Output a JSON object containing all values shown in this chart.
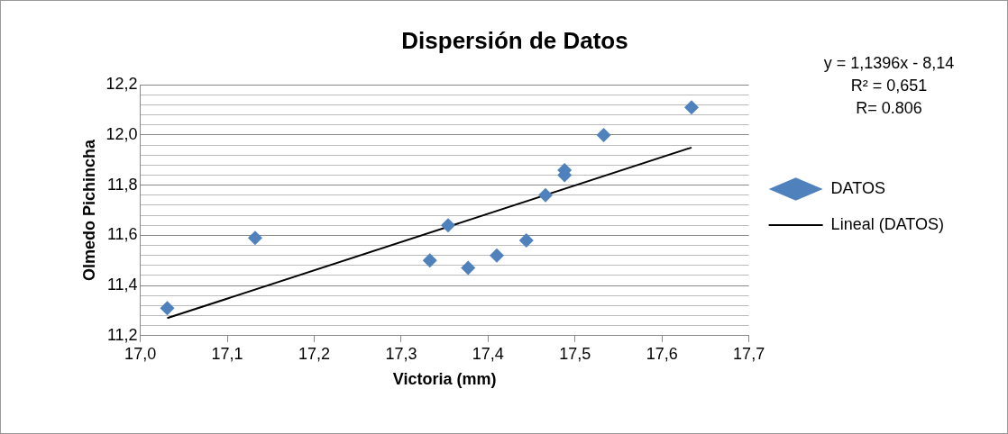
{
  "chart_data": {
    "type": "scatter",
    "title": "Dispersión de Datos",
    "xlabel": "Victoria (mm)",
    "ylabel": "Olmedo Pichincha",
    "annotations": [
      "y = 1,1396x - 8,14",
      "R² = 0,651",
      "R= 0.806"
    ],
    "series": [
      {
        "name": "DATOS",
        "color": "#4f81bd",
        "marker": "diamond",
        "x": [
          17.031,
          17.132,
          17.333,
          17.354,
          17.377,
          17.41,
          17.444,
          17.466,
          17.488,
          17.488,
          17.533,
          17.634
        ],
        "values": [
          11.31,
          11.59,
          11.5,
          11.64,
          11.47,
          11.52,
          11.58,
          11.76,
          11.86,
          11.84,
          12.0,
          12.11
        ]
      },
      {
        "name": "Lineal (DATOS)",
        "type": "line",
        "color": "#000000",
        "marker": "none",
        "x": [
          17.031,
          17.634
        ],
        "values": [
          11.27,
          11.95
        ]
      }
    ],
    "xlim": [
      17.0,
      17.7
    ],
    "ylim": [
      11.2,
      12.2
    ],
    "xticks": [
      {
        "value": 17.0,
        "label": "17,0"
      },
      {
        "value": 17.1,
        "label": "17,1"
      },
      {
        "value": 17.2,
        "label": "17,2"
      },
      {
        "value": 17.3,
        "label": "17,3"
      },
      {
        "value": 17.4,
        "label": "17,4"
      },
      {
        "value": 17.5,
        "label": "17,5"
      },
      {
        "value": 17.6,
        "label": "17,6"
      },
      {
        "value": 17.7,
        "label": "17,7"
      }
    ],
    "yticks": [
      {
        "value": 11.2,
        "label": "11,2"
      },
      {
        "value": 11.24,
        "label": null
      },
      {
        "value": 11.28,
        "label": null
      },
      {
        "value": 11.32,
        "label": null
      },
      {
        "value": 11.36,
        "label": null
      },
      {
        "value": 11.4,
        "label": "11,4"
      },
      {
        "value": 11.44,
        "label": null
      },
      {
        "value": 11.48,
        "label": null
      },
      {
        "value": 11.52,
        "label": null
      },
      {
        "value": 11.56,
        "label": null
      },
      {
        "value": 11.6,
        "label": "11,6"
      },
      {
        "value": 11.64,
        "label": null
      },
      {
        "value": 11.68,
        "label": null
      },
      {
        "value": 11.72,
        "label": null
      },
      {
        "value": 11.76,
        "label": null
      },
      {
        "value": 11.8,
        "label": "11,8"
      },
      {
        "value": 11.84,
        "label": null
      },
      {
        "value": 11.88,
        "label": null
      },
      {
        "value": 11.92,
        "label": null
      },
      {
        "value": 11.96,
        "label": null
      },
      {
        "value": 12.0,
        "label": "12,0"
      },
      {
        "value": 12.04,
        "label": null
      },
      {
        "value": 12.08,
        "label": null
      },
      {
        "value": 12.12,
        "label": null
      },
      {
        "value": 12.16,
        "label": null
      },
      {
        "value": 12.2,
        "label": "12,2"
      }
    ],
    "grid": "y",
    "legend": "right"
  }
}
